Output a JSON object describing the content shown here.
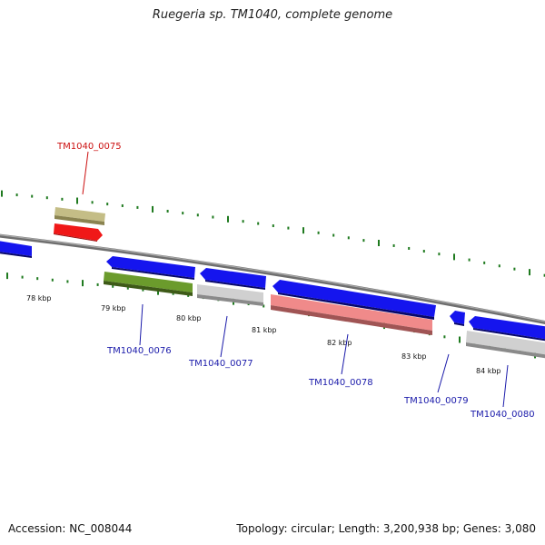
{
  "title": "Ruegeria sp. TM1040, complete genome",
  "footer": {
    "accession": "Accession: NC_008044",
    "summary": "Topology: circular; Length: 3,200,938 bp; Genes: 3,080"
  },
  "colors": {
    "backbone": "#888888",
    "cds_blue": "#1010ee",
    "highlight_red": "#ee1010",
    "khaki": "#bdb77a",
    "olive": "#5f8a2a",
    "gray": "#c8c8c8",
    "salmon": "#ef8585",
    "tick": "#1f7a1f",
    "label_blue": "#1a1aaa",
    "label_red": "#cc1111"
  },
  "scale_labels": [
    "78 kbp",
    "79 kbp",
    "80 kbp",
    "81 kbp",
    "82 kbp",
    "83 kbp",
    "84 kbp"
  ],
  "gene_labels": [
    {
      "id": "TM1040_0075",
      "kind": "highlight"
    },
    {
      "id": "TM1040_0076",
      "kind": "normal"
    },
    {
      "id": "TM1040_0077",
      "kind": "normal"
    },
    {
      "id": "TM1040_0078",
      "kind": "normal"
    },
    {
      "id": "TM1040_0079",
      "kind": "normal"
    },
    {
      "id": "TM1040_0080",
      "kind": "normal"
    }
  ]
}
